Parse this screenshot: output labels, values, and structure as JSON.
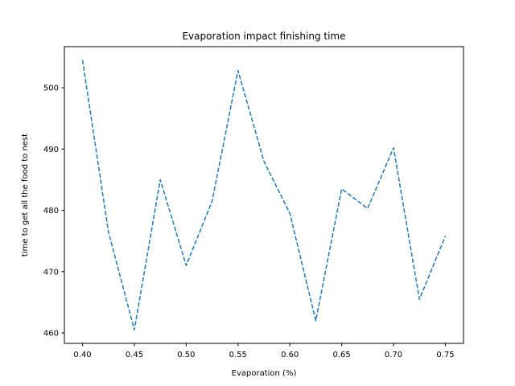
{
  "chart_data": {
    "type": "line",
    "title": "Evaporation impact finishing time",
    "xlabel": "Evaporation (%)",
    "ylabel": "time to get all the food to nest",
    "x": [
      0.4,
      0.425,
      0.45,
      0.475,
      0.5,
      0.525,
      0.55,
      0.575,
      0.6,
      0.625,
      0.65,
      0.675,
      0.7,
      0.725,
      0.75
    ],
    "series": [
      {
        "values": [
          504.5,
          476.5,
          460.5,
          485.0,
          471.0,
          481.5,
          502.8,
          488.0,
          479.5,
          462.0,
          483.5,
          480.3,
          490.2,
          465.5,
          475.8
        ],
        "color": "#1f77b4",
        "line_style": "dashed"
      }
    ],
    "xlim": [
      0.3825,
      0.7675
    ],
    "ylim": [
      458.3,
      506.7
    ],
    "xticks": [
      "0.40",
      "0.45",
      "0.50",
      "0.55",
      "0.60",
      "0.65",
      "0.70",
      "0.75"
    ],
    "xtick_values": [
      0.4,
      0.45,
      0.5,
      0.55,
      0.6,
      0.65,
      0.7,
      0.75
    ],
    "yticks": [
      "460",
      "470",
      "480",
      "490",
      "500"
    ],
    "ytick_values": [
      460,
      470,
      480,
      490,
      500
    ],
    "grid": false,
    "legend": "none"
  }
}
